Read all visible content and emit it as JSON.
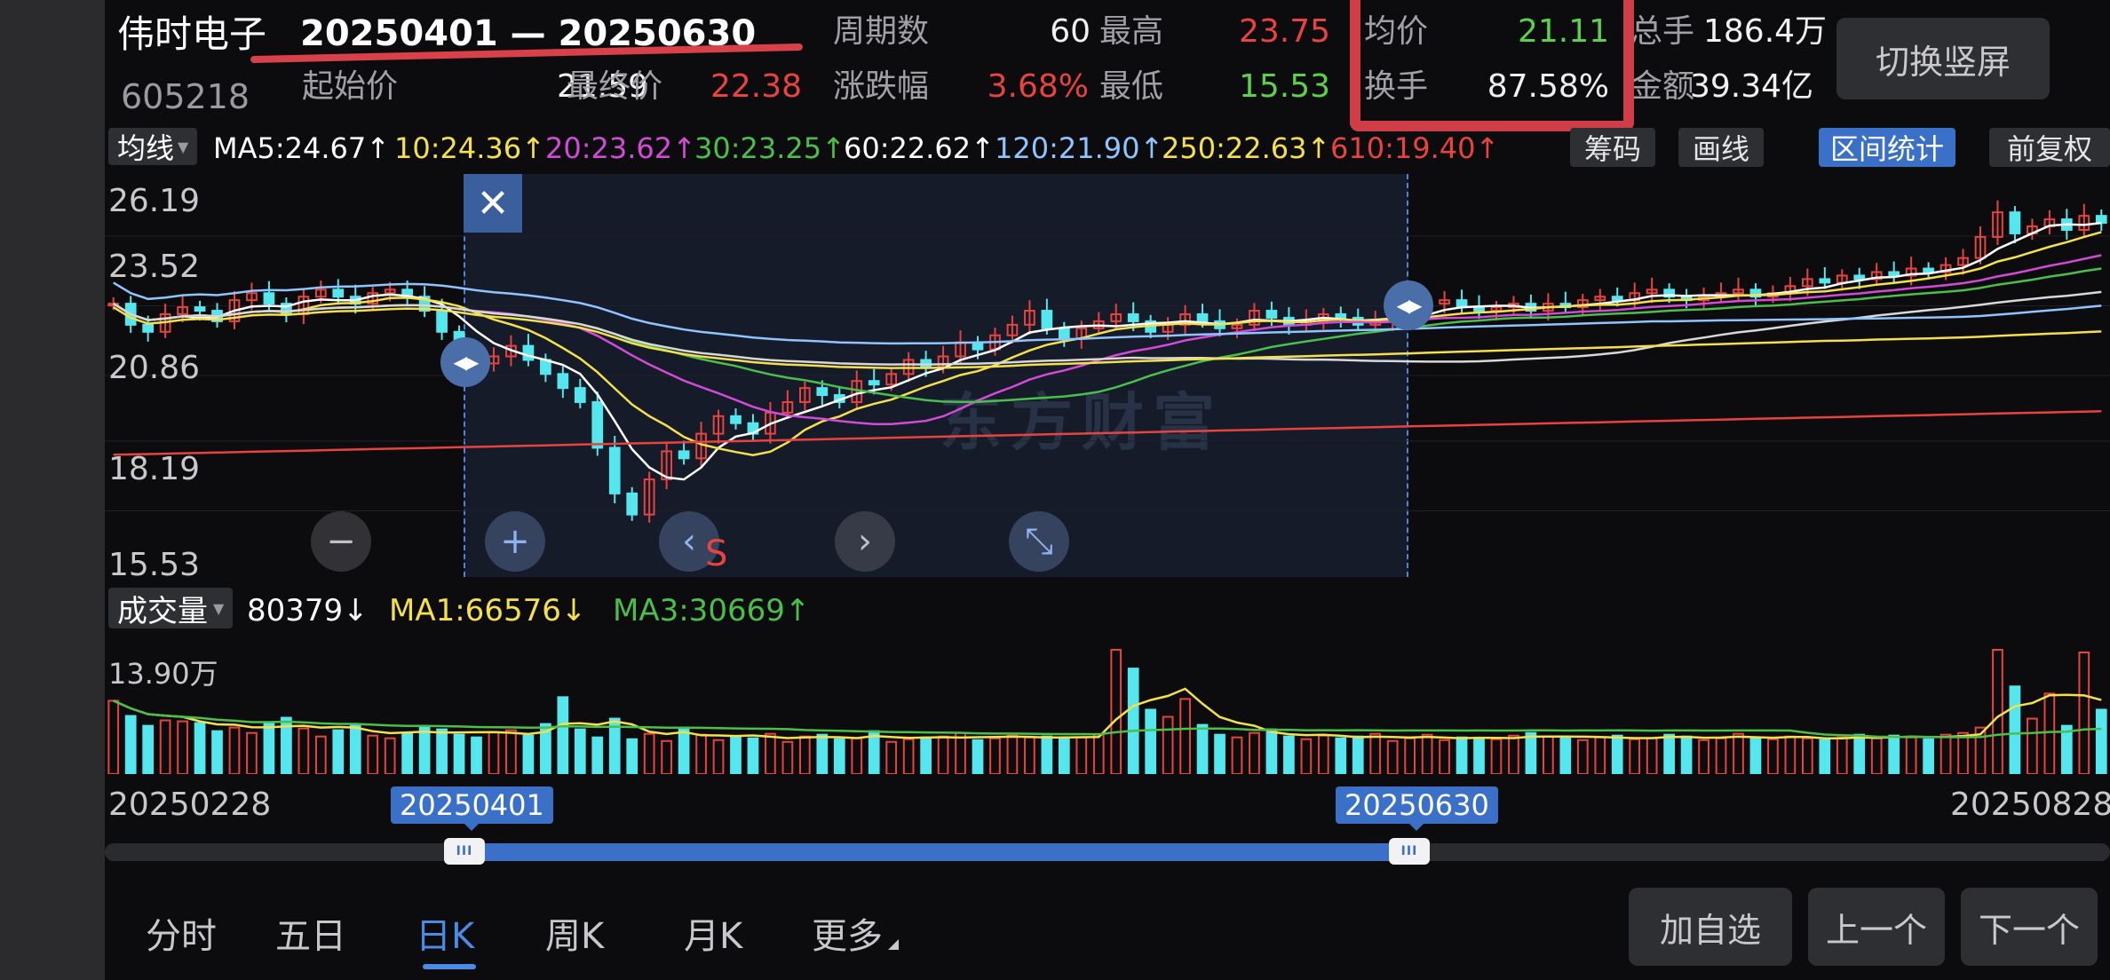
{
  "header": {
    "stock_name": "伟时电子",
    "stock_code": "605218",
    "range_text": "20250401 — 20250630",
    "period_label": "周期数",
    "period_value": "60",
    "high_label": "最高",
    "high_value": "23.75",
    "avg_label": "均价",
    "avg_value": "21.11",
    "total_label": "总手",
    "total_value": "186.4万",
    "start_label": "起始价",
    "start_value": "21.59",
    "end_label": "最终价",
    "end_value": "22.38",
    "change_label": "涨跌幅",
    "change_value": "3.68%",
    "low_label": "最低",
    "low_value": "15.53",
    "turnover_label": "换手",
    "turnover_value": "87.58%",
    "amount_label": "金额",
    "amount_value": "39.34亿",
    "switch_label": "切换竖屏"
  },
  "ma_bar": {
    "select_label": "均线",
    "items": [
      "MA5:24.67↑",
      "10:24.36↑",
      "20:23.62↑",
      "30:23.25↑",
      "60:22.62↑",
      "120:21.90↑",
      "250:22.63↑",
      "610:19.40↑"
    ],
    "tools": [
      "筹码",
      "画线",
      "区间统计",
      "前复权"
    ],
    "colors": [
      "#ffffff",
      "#f4e04d",
      "#d24bd6",
      "#4bbf4b",
      "#ffffff",
      "#8fc4ff",
      "#f4e04d",
      "#e8433f"
    ]
  },
  "chart": {
    "y_labels": [
      "26.19",
      "23.52",
      "20.86",
      "18.19",
      "15.53"
    ],
    "watermark": "东方财富",
    "close_symbol": "✕",
    "minus_symbol": "−",
    "plus_symbol": "+",
    "prev_symbol": "‹",
    "next_symbol": "›",
    "collapse_symbol": "⤡",
    "handle_symbol": "◀▶",
    "marker_s": "S"
  },
  "volume": {
    "select_label": "成交量",
    "value": "80379↓",
    "ma1": "MA1:66576↓",
    "ma3": "MA3:30669↑",
    "max_label": "13.90万"
  },
  "dates": {
    "start": "20250228",
    "sel_start": "20250401",
    "sel_end": "20250630",
    "end": "20250828",
    "selection_fraction_start": 0.18,
    "selection_fraction_end": 0.65
  },
  "tabs": [
    "分时",
    "五日",
    "日K",
    "周K",
    "月K",
    "更多"
  ],
  "active_tab": "日K",
  "buttons": {
    "add": "加自选",
    "prev": "上一个",
    "next": "下一个"
  },
  "chart_data": {
    "type": "candlestick",
    "ylim": [
      15.53,
      26.19
    ],
    "close": [
      22.6,
      22.0,
      21.8,
      22.3,
      22.5,
      22.4,
      22.1,
      22.7,
      22.9,
      22.6,
      22.3,
      22.8,
      23.0,
      22.8,
      22.6,
      22.9,
      23.0,
      22.8,
      22.4,
      21.8,
      21.2,
      20.9,
      21.1,
      21.4,
      21.0,
      20.6,
      20.2,
      19.8,
      18.5,
      17.2,
      16.6,
      17.6,
      18.4,
      18.2,
      18.9,
      19.4,
      19.2,
      18.9,
      19.5,
      19.8,
      20.2,
      20.0,
      19.8,
      20.4,
      20.3,
      20.6,
      21.0,
      20.8,
      21.1,
      21.5,
      21.3,
      21.7,
      22.0,
      22.4,
      21.9,
      21.6,
      21.9,
      22.1,
      22.3,
      22.1,
      21.8,
      22.0,
      22.3,
      22.1,
      21.9,
      22.0,
      22.4,
      22.2,
      22.0,
      22.1,
      22.3,
      22.2,
      22.0,
      22.1,
      22.3,
      22.4,
      22.6,
      22.7,
      22.5,
      22.4,
      22.5,
      22.6,
      22.4,
      22.6,
      22.5,
      22.7,
      22.8,
      22.7,
      22.9,
      23.0,
      22.8,
      22.7,
      22.8,
      22.9,
      23.0,
      22.8,
      22.9,
      23.1,
      23.3,
      23.2,
      23.4,
      23.3,
      23.5,
      23.4,
      23.6,
      23.5,
      23.7,
      23.9,
      24.5,
      25.2,
      24.6,
      24.8,
      25.0,
      24.7,
      25.1,
      24.9
    ],
    "volume": [
      8.2,
      6.5,
      5.4,
      6.0,
      5.9,
      5.7,
      4.8,
      5.2,
      4.6,
      5.8,
      6.3,
      5.1,
      4.2,
      4.9,
      5.5,
      4.3,
      4.0,
      4.6,
      5.3,
      5.0,
      4.4,
      4.1,
      4.7,
      4.9,
      4.3,
      5.6,
      8.6,
      5.0,
      4.1,
      6.2,
      3.9,
      4.5,
      3.7,
      5.2,
      4.4,
      3.8,
      4.2,
      4.0,
      4.5,
      3.6,
      4.2,
      4.4,
      3.9,
      4.0,
      4.8,
      3.6,
      3.9,
      4.1,
      4.2,
      4.6,
      3.8,
      4.0,
      4.3,
      4.1,
      4.2,
      3.9,
      4.1,
      4.4,
      13.9,
      11.8,
      7.2,
      6.4,
      8.4,
      5.5,
      4.4,
      4.1,
      4.6,
      5.0,
      4.2,
      3.9,
      4.3,
      4.0,
      4.2,
      4.5,
      3.7,
      4.0,
      4.4,
      3.8,
      4.1,
      4.0,
      3.9,
      4.3,
      4.6,
      4.2,
      4.0,
      3.8,
      4.1,
      4.3,
      3.9,
      4.0,
      4.4,
      4.2,
      3.8,
      4.0,
      4.5,
      4.1,
      3.9,
      4.2,
      4.0,
      3.8,
      4.1,
      4.4,
      4.0,
      4.3,
      4.1,
      3.9,
      4.4,
      4.6,
      5.2,
      13.9,
      9.8,
      6.2,
      9.0,
      5.4,
      13.6,
      7.2
    ]
  }
}
